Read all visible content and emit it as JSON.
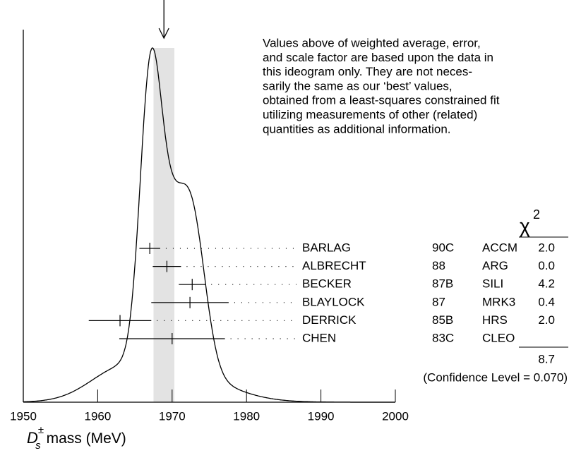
{
  "chart_data": {
    "type": "ideogram",
    "xlim": [
      1950,
      2000
    ],
    "xticks": [
      1950,
      1960,
      1970,
      1980,
      1990,
      2000
    ],
    "x_label": {
      "base": "D",
      "sup": "±",
      "sub": "s",
      "text": "mass (MeV)"
    },
    "weighted_average": 1968.9,
    "average_error": 1.4,
    "band_color": "#e3e3e3",
    "note": [
      "Values above of weighted average, error,",
      "and scale factor are based upon the data in",
      "this ideogram only.  They are not neces-",
      "sarily the same as our ‘best’ values,",
      "obtained from a least-squares constrained fit",
      "utilizing measurements of other (related)",
      "quantities as additional information."
    ],
    "chi2_header": "χ",
    "chi2_power": "2",
    "measurements": [
      {
        "name": "BARLAG",
        "ref": "90C",
        "expt": "ACCM",
        "chi2": "2.0",
        "value": 1967.0,
        "error": 1.4
      },
      {
        "name": "ALBRECHT",
        "ref": "88",
        "expt": "ARG",
        "chi2": "0.0",
        "value": 1969.3,
        "error": 1.9
      },
      {
        "name": "BECKER",
        "ref": "87B",
        "expt": "SILI",
        "chi2": "4.2",
        "value": 1972.7,
        "error": 1.8
      },
      {
        "name": "BLAYLOCK",
        "ref": "87",
        "expt": "MRK3",
        "chi2": "0.4",
        "value": 1972.4,
        "error": 5.2
      },
      {
        "name": "DERRICK",
        "ref": "85B",
        "expt": "HRS",
        "chi2": "2.0",
        "value": 1963.0,
        "error": 4.2
      },
      {
        "name": "CHEN",
        "ref": "83C",
        "expt": "CLEO",
        "chi2": null,
        "value": 1970.0,
        "error": 7.1
      }
    ],
    "chi2_total": "8.7",
    "confidence": "(Confidence Level = 0.070)"
  }
}
